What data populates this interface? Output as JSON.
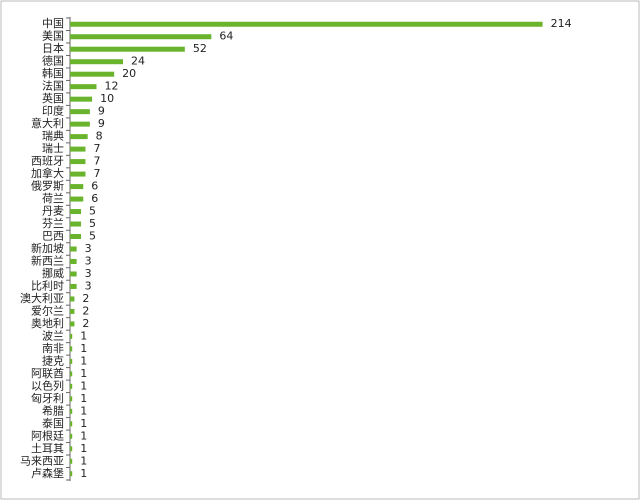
{
  "chart_data": {
    "type": "bar",
    "orientation": "horizontal",
    "color": "#6ab42d",
    "categories": [
      "中国",
      "美国",
      "日本",
      "德国",
      "韩国",
      "法国",
      "英国",
      "印度",
      "意大利",
      "瑞典",
      "瑞士",
      "西班牙",
      "加拿大",
      "俄罗斯",
      "荷兰",
      "丹麦",
      "芬兰",
      "巴西",
      "新加坡",
      "新西兰",
      "挪威",
      "比利时",
      "澳大利亚",
      "爱尔兰",
      "奥地利",
      "波兰",
      "南非",
      "捷克",
      "阿联酋",
      "以色列",
      "匈牙利",
      "希腊",
      "泰国",
      "阿根廷",
      "土耳其",
      "马来西亚",
      "卢森堡"
    ],
    "values": [
      214,
      64,
      52,
      24,
      20,
      12,
      10,
      9,
      9,
      8,
      7,
      7,
      7,
      6,
      6,
      5,
      5,
      5,
      3,
      3,
      3,
      3,
      2,
      2,
      2,
      1,
      1,
      1,
      1,
      1,
      1,
      1,
      1,
      1,
      1,
      1,
      1
    ],
    "xlim": [
      0,
      240
    ]
  }
}
